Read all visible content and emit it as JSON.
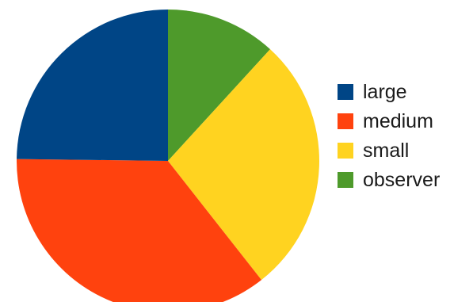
{
  "chart_data": {
    "type": "pie",
    "title": "",
    "start_angle_deg": 0,
    "direction": "clockwise",
    "slices": [
      {
        "label": "observer",
        "value": 11.8,
        "color": "#4e9a2b"
      },
      {
        "label": "small",
        "value": 27.6,
        "color": "#ffd320"
      },
      {
        "label": "medium",
        "value": 35.8,
        "color": "#ff420e"
      },
      {
        "label": "large",
        "value": 24.8,
        "color": "#004586"
      }
    ],
    "legend_order": [
      "large",
      "medium",
      "small",
      "observer"
    ],
    "legend_position": "right"
  }
}
